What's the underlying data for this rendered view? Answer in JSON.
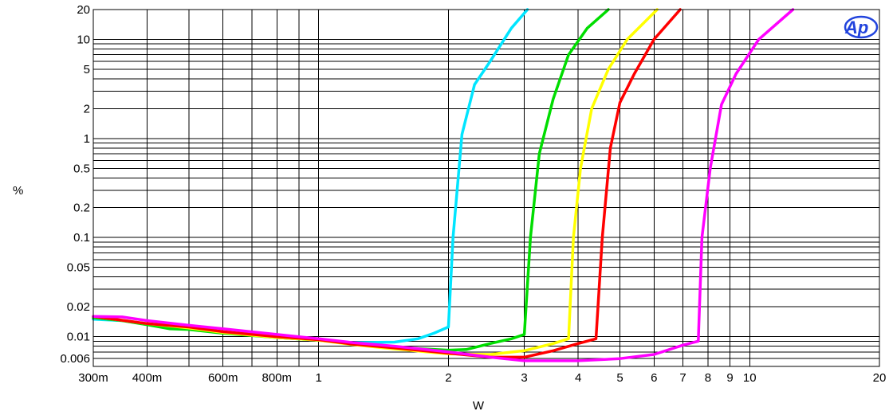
{
  "chart_data": {
    "type": "line",
    "xlabel": "W",
    "ylabel": "%",
    "x_scale": "log",
    "y_scale": "log",
    "xlim": [
      0.3,
      20
    ],
    "ylim": [
      0.005,
      20
    ],
    "grid": true,
    "logo_text": "Ap",
    "x_ticks": [
      {
        "v": 0.3,
        "label": "300m"
      },
      {
        "v": 0.4,
        "label": "400m"
      },
      {
        "v": 0.6,
        "label": "600m"
      },
      {
        "v": 0.8,
        "label": "800m"
      },
      {
        "v": 1,
        "label": "1"
      },
      {
        "v": 2,
        "label": "2"
      },
      {
        "v": 3,
        "label": "3"
      },
      {
        "v": 4,
        "label": "4"
      },
      {
        "v": 5,
        "label": "5"
      },
      {
        "v": 6,
        "label": "6"
      },
      {
        "v": 7,
        "label": "7"
      },
      {
        "v": 8,
        "label": "8"
      },
      {
        "v": 9,
        "label": "9"
      },
      {
        "v": 10,
        "label": "10"
      },
      {
        "v": 20,
        "label": "20"
      }
    ],
    "y_ticks": [
      {
        "v": 0.006,
        "label": "0.006"
      },
      {
        "v": 0.01,
        "label": "0.01"
      },
      {
        "v": 0.02,
        "label": "0.02"
      },
      {
        "v": 0.05,
        "label": "0.05"
      },
      {
        "v": 0.1,
        "label": "0.1"
      },
      {
        "v": 0.2,
        "label": "0.2"
      },
      {
        "v": 0.5,
        "label": "0.5"
      },
      {
        "v": 1,
        "label": "1"
      },
      {
        "v": 2,
        "label": "2"
      },
      {
        "v": 5,
        "label": "5"
      },
      {
        "v": 10,
        "label": "10"
      },
      {
        "v": 20,
        "label": "20"
      }
    ],
    "series": [
      {
        "color": "#00e5ff",
        "points": [
          [
            0.3,
            0.015
          ],
          [
            0.35,
            0.0145
          ],
          [
            0.4,
            0.0135
          ],
          [
            0.5,
            0.012
          ],
          [
            0.6,
            0.011
          ],
          [
            0.8,
            0.0098
          ],
          [
            1.0,
            0.0092
          ],
          [
            1.2,
            0.0087
          ],
          [
            1.5,
            0.0088
          ],
          [
            1.7,
            0.0095
          ],
          [
            1.85,
            0.0108
          ],
          [
            2.0,
            0.0125
          ],
          [
            2.05,
            0.1
          ],
          [
            2.15,
            1.1
          ],
          [
            2.3,
            3.5
          ],
          [
            2.5,
            6
          ],
          [
            2.8,
            13
          ],
          [
            3.05,
            20
          ]
        ]
      },
      {
        "color": "#00dd00",
        "points": [
          [
            0.3,
            0.0155
          ],
          [
            0.35,
            0.0145
          ],
          [
            0.4,
            0.0132
          ],
          [
            0.45,
            0.012
          ],
          [
            0.5,
            0.0118
          ],
          [
            0.6,
            0.0108
          ],
          [
            0.8,
            0.0098
          ],
          [
            1.0,
            0.0092
          ],
          [
            1.2,
            0.0085
          ],
          [
            1.5,
            0.0078
          ],
          [
            2.0,
            0.0073
          ],
          [
            2.2,
            0.0074
          ],
          [
            2.5,
            0.0085
          ],
          [
            2.8,
            0.0095
          ],
          [
            3.0,
            0.0105
          ],
          [
            3.1,
            0.1
          ],
          [
            3.25,
            0.7
          ],
          [
            3.5,
            2.5
          ],
          [
            3.8,
            7
          ],
          [
            4.2,
            13
          ],
          [
            4.7,
            20
          ]
        ]
      },
      {
        "color": "#ffff00",
        "points": [
          [
            0.3,
            0.016
          ],
          [
            0.4,
            0.0135
          ],
          [
            0.5,
            0.0122
          ],
          [
            0.6,
            0.011
          ],
          [
            0.8,
            0.0098
          ],
          [
            1.0,
            0.0092
          ],
          [
            1.2,
            0.0083
          ],
          [
            1.5,
            0.0075
          ],
          [
            2.0,
            0.0067
          ],
          [
            2.5,
            0.0066
          ],
          [
            3.0,
            0.0072
          ],
          [
            3.5,
            0.0085
          ],
          [
            3.8,
            0.0095
          ],
          [
            3.9,
            0.1
          ],
          [
            4.05,
            0.5
          ],
          [
            4.3,
            2
          ],
          [
            4.7,
            5
          ],
          [
            5.2,
            10
          ],
          [
            6.1,
            20
          ]
        ]
      },
      {
        "color": "#ff0000",
        "points": [
          [
            0.3,
            0.016
          ],
          [
            0.4,
            0.0135
          ],
          [
            0.5,
            0.0125
          ],
          [
            0.6,
            0.0112
          ],
          [
            0.8,
            0.01
          ],
          [
            1.0,
            0.0093
          ],
          [
            1.2,
            0.0084
          ],
          [
            1.5,
            0.0077
          ],
          [
            2.0,
            0.0068
          ],
          [
            2.5,
            0.0062
          ],
          [
            3.0,
            0.0062
          ],
          [
            3.5,
            0.0072
          ],
          [
            4.0,
            0.0085
          ],
          [
            4.4,
            0.0095
          ],
          [
            4.55,
            0.1
          ],
          [
            4.75,
            0.8
          ],
          [
            5.0,
            2.3
          ],
          [
            5.4,
            4.5
          ],
          [
            6.0,
            10
          ],
          [
            6.9,
            20
          ]
        ]
      },
      {
        "color": "#ff00ff",
        "points": [
          [
            0.3,
            0.016
          ],
          [
            0.35,
            0.0158
          ],
          [
            0.4,
            0.0145
          ],
          [
            0.5,
            0.013
          ],
          [
            0.6,
            0.012
          ],
          [
            0.8,
            0.0105
          ],
          [
            1.0,
            0.0095
          ],
          [
            1.2,
            0.0087
          ],
          [
            1.5,
            0.008
          ],
          [
            2.0,
            0.007
          ],
          [
            2.5,
            0.0062
          ],
          [
            3.0,
            0.0057
          ],
          [
            4.0,
            0.0057
          ],
          [
            5.0,
            0.006
          ],
          [
            6.0,
            0.0066
          ],
          [
            7.0,
            0.0082
          ],
          [
            7.6,
            0.009
          ],
          [
            7.75,
            0.1
          ],
          [
            8.1,
            0.5
          ],
          [
            8.6,
            2.2
          ],
          [
            9.3,
            4.5
          ],
          [
            10.5,
            10
          ],
          [
            12.6,
            20
          ]
        ]
      }
    ]
  }
}
